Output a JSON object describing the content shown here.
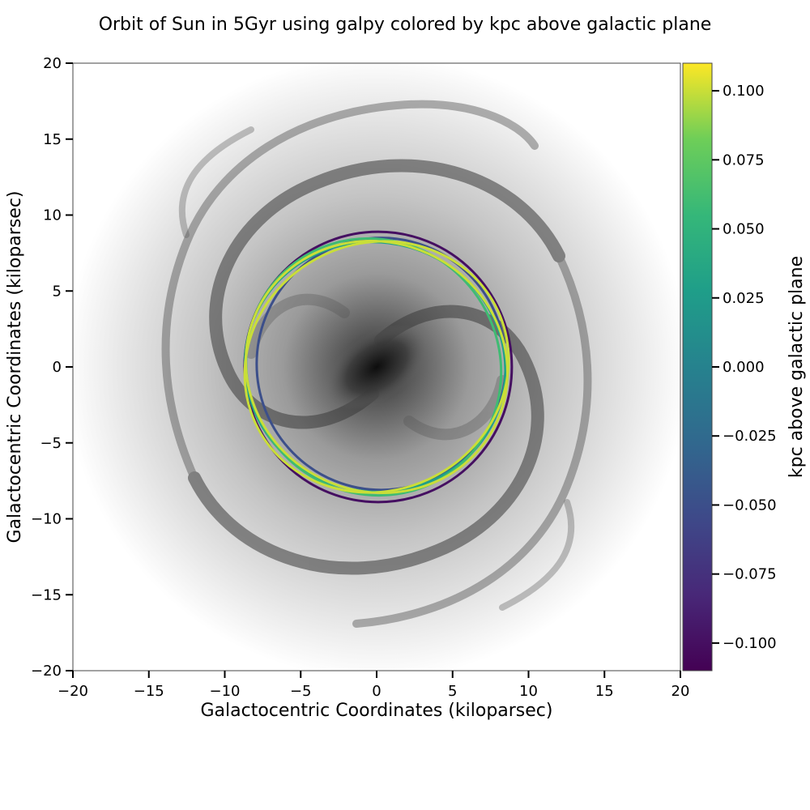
{
  "chart_data": {
    "type": "line",
    "title": "Orbit of Sun in 5Gyr using galpy colored by kpc above galactic plane",
    "xlabel": "Galactocentric Coordinates (kiloparsec)",
    "ylabel": "Galactocentric Coordinates (kiloparsec)",
    "xlim": [
      -20,
      20
    ],
    "ylim": [
      20,
      -20
    ],
    "y_axis_inverted": true,
    "xticks": [
      -20,
      -15,
      -10,
      -5,
      0,
      5,
      10,
      15,
      20
    ],
    "yticks": [
      -20,
      -15,
      -10,
      -5,
      0,
      5,
      10,
      15,
      20
    ],
    "xtick_labels": [
      "−20",
      "−15",
      "−10",
      "−5",
      "0",
      "5",
      "10",
      "15",
      "20"
    ],
    "ytick_labels": [
      "−20",
      "−15",
      "−10",
      "−5",
      "0",
      "5",
      "10",
      "15",
      "20"
    ],
    "background_image": "face-on spiral galaxy (grayscale)",
    "grid": false,
    "colorbar": {
      "label": "kpc above galactic plane",
      "colormap": "viridis",
      "range": [
        -0.11,
        0.11
      ],
      "ticks": [
        0.1,
        0.075,
        0.05,
        0.025,
        0.0,
        -0.025,
        -0.05,
        -0.075,
        -0.1
      ],
      "tick_labels": [
        "0.100",
        "0.075",
        "0.050",
        "0.025",
        "0.000",
        "−0.025",
        "−0.050",
        "−0.075",
        "−0.100"
      ]
    },
    "series": [
      {
        "description": "orbit loops (approx. ellipses), z value sets color",
        "loops": [
          {
            "cx": 0.0,
            "cy": 0.0,
            "rx": 8.7,
            "ry": 8.2,
            "rotation_deg": 25,
            "z": 0.1
          },
          {
            "cx": 0.0,
            "cy": 0.0,
            "rx": 8.8,
            "ry": 8.15,
            "rotation_deg": -25,
            "z": 0.1
          },
          {
            "cx": -0.2,
            "cy": 0.0,
            "rx": 8.6,
            "ry": 8.25,
            "rotation_deg": 50,
            "z": 0.06
          },
          {
            "cx": -0.1,
            "cy": 0.0,
            "rx": 8.6,
            "ry": 8.2,
            "rotation_deg": 15,
            "z": 0.03
          },
          {
            "cx": 0.3,
            "cy": 0.2,
            "rx": 8.2,
            "ry": 8.3,
            "rotation_deg": 0,
            "z": -0.05
          },
          {
            "cx": 0.1,
            "cy": 0.0,
            "rx": 8.8,
            "ry": 8.9,
            "rotation_deg": 0,
            "z": -0.1
          }
        ]
      }
    ]
  }
}
